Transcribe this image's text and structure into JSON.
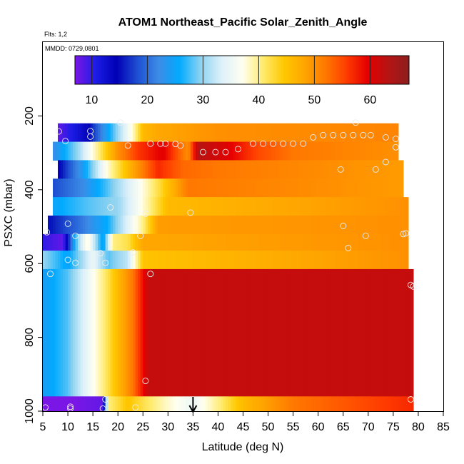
{
  "chart_data": {
    "type": "heatmap",
    "title": "ATOM1 Northeast_Pacific Solar_Zenith_Angle",
    "flights_label": "Flts: 1,2",
    "date_label": "MMDD: 0729,0801",
    "xlabel": "Latitude (deg N)",
    "ylabel": "PSXC (mbar)",
    "xlim": [
      5,
      85
    ],
    "ylim": [
      1000,
      0
    ],
    "x_ticks": [
      5,
      10,
      15,
      20,
      25,
      30,
      35,
      40,
      45,
      50,
      55,
      60,
      65,
      70,
      75,
      80,
      85
    ],
    "y_ticks": [
      200,
      400,
      600,
      800,
      1000
    ],
    "colorbar": {
      "range": [
        7,
        67
      ],
      "ticks": [
        10,
        20,
        30,
        40,
        50,
        60
      ],
      "colors": [
        "#7b17e6",
        "#1c1ce6",
        "#0000b4",
        "#1e50d2",
        "#3c8ce6",
        "#00aaff",
        "#8cd2f0",
        "#dcf0fa",
        "#fffff0",
        "#ffeb6e",
        "#ffc800",
        "#ffa500",
        "#ff7800",
        "#ff3c00",
        "#e60000",
        "#b41414",
        "#8c1e1e"
      ]
    },
    "marker_latitude": 35,
    "layers": [
      {
        "p_top": 220,
        "p_bot": 270,
        "lat_min": 8,
        "lat_max": 76,
        "values": [
          [
            8,
            8
          ],
          [
            14,
            14
          ],
          [
            18,
            25
          ],
          [
            23,
            38
          ],
          [
            25,
            46
          ],
          [
            28,
            48
          ],
          [
            40,
            50
          ],
          [
            76,
            51
          ]
        ]
      },
      {
        "p_top": 270,
        "p_bot": 320,
        "lat_min": 7,
        "lat_max": 76,
        "values": [
          [
            7,
            22
          ],
          [
            12,
            30
          ],
          [
            16,
            40
          ],
          [
            20,
            50
          ],
          [
            24,
            56
          ],
          [
            29,
            60
          ],
          [
            32,
            54
          ],
          [
            34,
            50
          ],
          [
            36,
            63
          ],
          [
            42,
            60
          ],
          [
            48,
            55
          ],
          [
            55,
            52
          ],
          [
            76,
            50
          ]
        ]
      },
      {
        "p_top": 320,
        "p_bot": 370,
        "lat_min": 8,
        "lat_max": 77,
        "values": [
          [
            8,
            14
          ],
          [
            13,
            24
          ],
          [
            18,
            38
          ],
          [
            23,
            48
          ],
          [
            28,
            57
          ],
          [
            33,
            53
          ],
          [
            40,
            52
          ],
          [
            77,
            49
          ]
        ]
      },
      {
        "p_top": 370,
        "p_bot": 420,
        "lat_min": 7,
        "lat_max": 77,
        "values": [
          [
            7,
            18
          ],
          [
            13,
            22
          ],
          [
            18,
            28
          ],
          [
            24,
            36
          ],
          [
            28,
            42
          ],
          [
            34,
            52
          ],
          [
            77,
            49
          ]
        ]
      },
      {
        "p_top": 420,
        "p_bot": 470,
        "lat_min": 7,
        "lat_max": 78,
        "values": [
          [
            7,
            25
          ],
          [
            14,
            28
          ],
          [
            20,
            30
          ],
          [
            24,
            36
          ],
          [
            30,
            46
          ],
          [
            78,
            50
          ]
        ]
      },
      {
        "p_top": 470,
        "p_bot": 520,
        "lat_min": 6,
        "lat_max": 78,
        "values": [
          [
            6,
            15
          ],
          [
            12,
            20
          ],
          [
            18,
            26
          ],
          [
            25,
            40
          ],
          [
            28,
            49
          ],
          [
            78,
            50
          ]
        ]
      },
      {
        "p_top": 520,
        "p_bot": 565,
        "lat_min": 5,
        "lat_max": 78,
        "values": [
          [
            5,
            10
          ],
          [
            9,
            8
          ],
          [
            12,
            30
          ],
          [
            14,
            38
          ],
          [
            17,
            24
          ],
          [
            19,
            40
          ],
          [
            22,
            42
          ],
          [
            25,
            48
          ],
          [
            78,
            50
          ]
        ]
      },
      {
        "p_top": 565,
        "p_bot": 615,
        "lat_min": 5,
        "lat_max": 78,
        "values": [
          [
            5,
            30
          ],
          [
            10,
            25
          ],
          [
            15,
            35
          ],
          [
            18,
            28
          ],
          [
            22,
            32
          ],
          [
            25,
            45
          ],
          [
            78,
            50
          ]
        ]
      },
      {
        "p_top": 615,
        "p_bot": 960,
        "lat_min": 5,
        "lat_max": 79,
        "values": [
          [
            5,
            24
          ],
          [
            10,
            28
          ],
          [
            14,
            35
          ],
          [
            17,
            40
          ],
          [
            20,
            46
          ],
          [
            23,
            52
          ],
          [
            26,
            62
          ],
          [
            79,
            62
          ]
        ]
      },
      {
        "p_top": 960,
        "p_bot": 1000,
        "lat_min": 5,
        "lat_max": 79,
        "values": [
          [
            5,
            6
          ],
          [
            17,
            8
          ],
          [
            18,
            40
          ],
          [
            22,
            45
          ],
          [
            25,
            42
          ],
          [
            30,
            38
          ],
          [
            35,
            35
          ],
          [
            40,
            40
          ],
          [
            45,
            46
          ],
          [
            55,
            52
          ],
          [
            79,
            57
          ]
        ]
      }
    ],
    "observations": [
      [
        8.2,
        242
      ],
      [
        9.5,
        268
      ],
      [
        14.5,
        241
      ],
      [
        14.5,
        256
      ],
      [
        20.5,
        218
      ],
      [
        22,
        280
      ],
      [
        26.5,
        275
      ],
      [
        28.5,
        275
      ],
      [
        29.5,
        275
      ],
      [
        31.5,
        276
      ],
      [
        32.5,
        280
      ],
      [
        37,
        298
      ],
      [
        39.5,
        298
      ],
      [
        41.5,
        298
      ],
      [
        44,
        290
      ],
      [
        47,
        275
      ],
      [
        49,
        275
      ],
      [
        51,
        275
      ],
      [
        53,
        275
      ],
      [
        55,
        275
      ],
      [
        57,
        275
      ],
      [
        59,
        258
      ],
      [
        61,
        252
      ],
      [
        63,
        252
      ],
      [
        65,
        252
      ],
      [
        67,
        252
      ],
      [
        67.5,
        218
      ],
      [
        69,
        252
      ],
      [
        70.5,
        252
      ],
      [
        73.5,
        258
      ],
      [
        75.5,
        262
      ],
      [
        75.5,
        285
      ],
      [
        71.5,
        345
      ],
      [
        73.5,
        325
      ],
      [
        64.5,
        345
      ],
      [
        18.5,
        448
      ],
      [
        25.5,
        465
      ],
      [
        34.5,
        462
      ],
      [
        10,
        492
      ],
      [
        65,
        498
      ],
      [
        5.8,
        515
      ],
      [
        77.5,
        518
      ],
      [
        77,
        520
      ],
      [
        69.5,
        525
      ],
      [
        11.5,
        525
      ],
      [
        24.5,
        525
      ],
      [
        16.5,
        572
      ],
      [
        23,
        570
      ],
      [
        66,
        558
      ],
      [
        10,
        590
      ],
      [
        11.5,
        598
      ],
      [
        17.5,
        598
      ],
      [
        6.5,
        628
      ],
      [
        26.5,
        628
      ],
      [
        78.5,
        658
      ],
      [
        79,
        662
      ],
      [
        25.5,
        918
      ],
      [
        17.5,
        968
      ],
      [
        78.5,
        968
      ],
      [
        5.5,
        990
      ],
      [
        10.5,
        988
      ],
      [
        10.5,
        993
      ],
      [
        17,
        993
      ],
      [
        23.5,
        990
      ]
    ]
  }
}
